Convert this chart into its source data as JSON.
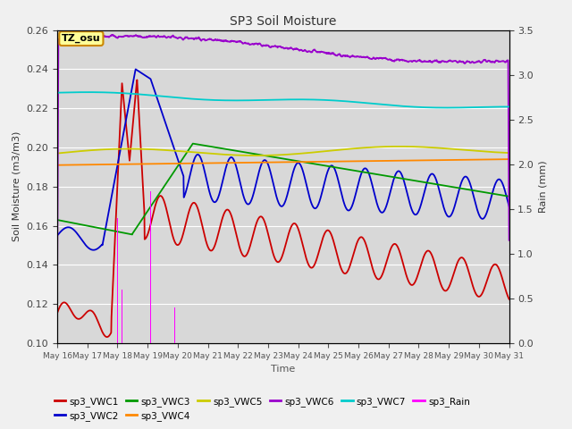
{
  "title": "SP3 Soil Moisture",
  "xlabel": "Time",
  "ylabel_left": "Soil Moisture (m3/m3)",
  "ylabel_right": "Rain (mm)",
  "ylim_left": [
    0.1,
    0.26
  ],
  "ylim_right": [
    0.0,
    3.5
  ],
  "colors": {
    "VWC1": "#cc0000",
    "VWC2": "#0000cc",
    "VWC3": "#009900",
    "VWC4": "#ff8800",
    "VWC5": "#cccc00",
    "VWC6": "#9900cc",
    "VWC7": "#00cccc",
    "Rain": "#ff00ff"
  },
  "tz_label": "TZ_osu",
  "background_color": "#d8d8d8",
  "legend_ncol_row1": 6,
  "legend_ncol_row2": 2
}
